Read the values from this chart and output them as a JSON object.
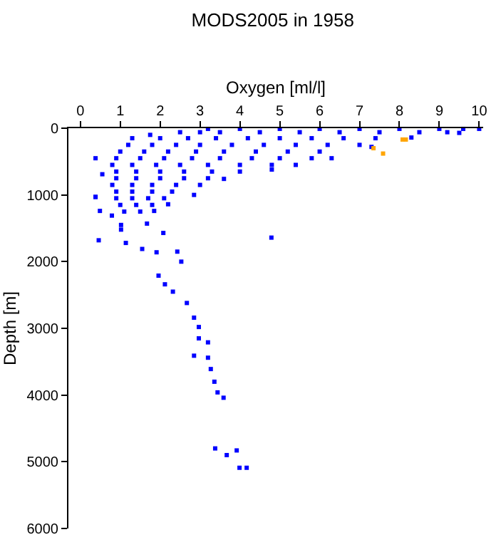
{
  "chart_data": {
    "type": "scatter",
    "title": "MODS2005 in 1958",
    "xlabel": "Oxygen [ml/l]",
    "ylabel": "Depth [m]",
    "xlim": [
      -0.3,
      10.1
    ],
    "xticks": [
      0,
      1,
      2,
      3,
      4,
      5,
      6,
      7,
      8,
      9,
      10
    ],
    "ylim": [
      6000,
      0
    ],
    "yticks": [
      0,
      1000,
      2000,
      3000,
      4000,
      5000,
      6000
    ],
    "marker": "square",
    "series": [
      {
        "color": "#0000ff",
        "x": [
          3.2,
          4,
          5,
          6,
          7,
          8,
          9,
          9.6,
          10,
          2.5,
          3,
          3.5,
          4.5,
          5.5,
          6.5,
          7.5,
          8.5,
          9.2,
          9.5,
          1.3,
          2,
          2.7,
          3.4,
          4.2,
          5,
          5.8,
          6.6,
          7.4,
          8.3,
          1.2,
          1.8,
          2.4,
          3,
          3.8,
          4.6,
          5.4,
          6.2,
          7.0,
          7.3,
          1.0,
          1.6,
          2.2,
          2.9,
          3.6,
          4.4,
          5.2,
          6.0,
          0.9,
          1.5,
          2.1,
          2.8,
          3.5,
          4.3,
          5.0,
          5.8,
          6.3,
          0.8,
          1.3,
          1.9,
          2.5,
          3.2,
          4.0,
          4.8,
          5.4,
          0.9,
          1.4,
          2.0,
          2.6,
          3.3,
          4.0,
          4.8,
          0.9,
          1.4,
          2.0,
          2.6,
          3.2,
          3.6,
          0.8,
          1.3,
          1.8,
          2.4,
          3.0,
          0.9,
          1.3,
          1.8,
          2.3,
          2.85,
          0.9,
          1.3,
          1.7,
          2.1,
          0.38,
          1.0,
          1.4,
          1.8,
          2.2,
          1.1,
          1.5,
          1.85,
          0.49,
          0.38,
          0.55,
          0.38,
          0.79,
          1.02,
          1.75,
          0.46,
          4.79,
          1.14,
          1.02,
          1.67,
          1.55,
          2.08,
          1.91,
          2.43,
          2.53,
          1.96,
          2.12,
          2.32,
          2.67,
          2.85,
          2.97,
          2.97,
          3.2,
          2.85,
          3.2,
          3.27,
          3.36,
          3.44,
          3.59,
          3.38,
          3.92,
          3.67,
          3.99,
          4.17
        ],
        "values": [
          10,
          10,
          10,
          10,
          10,
          10,
          10,
          10,
          10,
          60,
          60,
          60,
          60,
          60,
          60,
          60,
          60,
          60,
          70,
          150,
          150,
          150,
          150,
          150,
          150,
          150,
          150,
          150,
          140,
          250,
          250,
          250,
          250,
          250,
          250,
          250,
          250,
          250,
          280,
          350,
          350,
          350,
          350,
          350,
          350,
          350,
          350,
          450,
          450,
          450,
          450,
          450,
          450,
          450,
          450,
          450,
          550,
          550,
          550,
          550,
          550,
          550,
          550,
          550,
          650,
          650,
          650,
          650,
          650,
          650,
          620,
          750,
          750,
          750,
          750,
          750,
          760,
          850,
          850,
          850,
          850,
          850,
          950,
          950,
          950,
          950,
          1000,
          1050,
          1050,
          1050,
          1050,
          1030,
          1150,
          1150,
          1150,
          1140,
          1250,
          1250,
          1240,
          1240,
          450,
          690,
          1030,
          1310,
          1520,
          100,
          1680,
          1640,
          1720,
          1450,
          1430,
          1810,
          1570,
          1860,
          1850,
          2000,
          2210,
          2340,
          2450,
          2620,
          2840,
          2980,
          3150,
          3210,
          3410,
          3440,
          3610,
          3800,
          3960,
          4040,
          4800,
          4830,
          4900,
          5090,
          5090
        ]
      },
      {
        "color": "#ffa500",
        "x": [
          7.35,
          7.59,
          8.08,
          8.16
        ],
        "values": [
          300,
          380,
          170,
          170
        ]
      }
    ]
  }
}
